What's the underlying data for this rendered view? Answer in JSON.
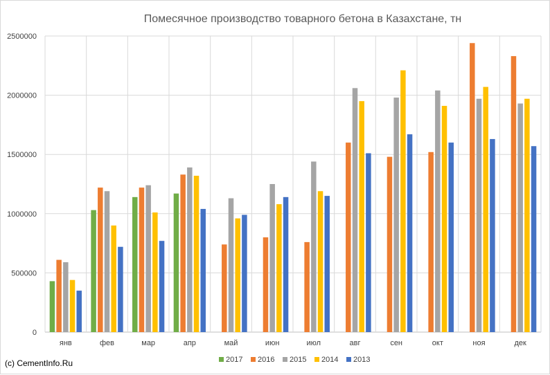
{
  "chart_data": {
    "type": "bar",
    "title": "Помесячное производство товарного бетона в Казахстане, тн",
    "xlabel": "",
    "ylabel": "",
    "ylim": [
      0,
      2500000
    ],
    "yticks": [
      0,
      500000,
      1000000,
      1500000,
      2000000,
      2500000
    ],
    "ytick_labels": [
      "0",
      "500000",
      "1000000",
      "1500000",
      "2000000",
      "2500000"
    ],
    "grid": true,
    "legend_position": "bottom",
    "categories": [
      "янв",
      "фев",
      "мар",
      "апр",
      "май",
      "июн",
      "июл",
      "авг",
      "сен",
      "окт",
      "ноя",
      "дек"
    ],
    "series": [
      {
        "name": "2017",
        "color": "#70ad47",
        "values": [
          430000,
          1030000,
          1140000,
          1170000,
          null,
          null,
          null,
          null,
          null,
          null,
          null,
          null
        ]
      },
      {
        "name": "2016",
        "color": "#ed7d31",
        "values": [
          610000,
          1220000,
          1220000,
          1330000,
          740000,
          800000,
          760000,
          1600000,
          1480000,
          1520000,
          2440000,
          2330000
        ]
      },
      {
        "name": "2015",
        "color": "#a5a5a5",
        "values": [
          590000,
          1190000,
          1240000,
          1390000,
          1130000,
          1250000,
          1440000,
          2060000,
          1980000,
          2040000,
          1970000,
          1930000
        ]
      },
      {
        "name": "2014",
        "color": "#ffc000",
        "values": [
          440000,
          900000,
          1010000,
          1320000,
          960000,
          1080000,
          1190000,
          1950000,
          2210000,
          1910000,
          2070000,
          1970000
        ]
      },
      {
        "name": "2013",
        "color": "#4472c4",
        "values": [
          350000,
          720000,
          770000,
          1040000,
          990000,
          1140000,
          1150000,
          1510000,
          1670000,
          1600000,
          1630000,
          1570000
        ]
      }
    ]
  },
  "credit": "(c) CementInfo.Ru"
}
